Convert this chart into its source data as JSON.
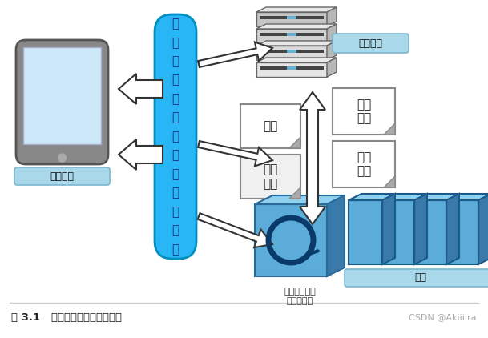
{
  "title": "图 3.1   连通性给设备带来的变化",
  "watermark": "CSDN @Akiiiira",
  "bg_color": "#ffffff",
  "center_col_text": "能够灵活利用多种设备和功能",
  "center_col_bg": "#29b6f6",
  "center_col_ec": "#0090c0",
  "user_terminal_label": "用户终端",
  "server_label": "服务器端",
  "firmware_label": "固件",
  "operation_label": "操作\n命令",
  "machine_state_label": "机器\n状态",
  "measurement_label": "测量\n信息",
  "update_label": "时刻保持功能\n在最新状态",
  "device_label": "设备",
  "label_box_color": "#a8d8ea",
  "paper_box_color": "#ffffff",
  "paper_fold_color": "#b0b0b0",
  "device_front_color": "#5bacd8",
  "device_top_color": "#8fd0ef",
  "device_side_color": "#3a7aaa",
  "server_gray": "#c8c8c8",
  "server_dark": "#444444",
  "server_blue": "#6ab0d0",
  "update_box_color": "#5bacd8",
  "update_icon_color": "#0a3a6a",
  "arrow_fill": "#ffffff",
  "arrow_edge": "#333333",
  "title_color": "#222222",
  "watermark_color": "#aaaaaa",
  "tablet_frame": "#888888",
  "tablet_screen": "#cce8f8",
  "tablet_button": "#aaaaaa"
}
